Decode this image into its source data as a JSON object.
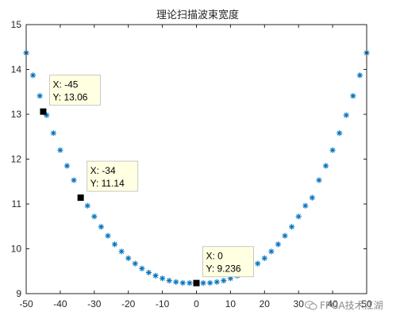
{
  "chart_data": {
    "type": "scatter",
    "title": "理论扫描波束宽度",
    "xlabel": "",
    "ylabel": "",
    "xlim": [
      -50,
      50
    ],
    "ylim": [
      9,
      15
    ],
    "xticks": [
      -50,
      -40,
      -30,
      -20,
      -10,
      0,
      10,
      20,
      30,
      40,
      50
    ],
    "yticks": [
      9,
      10,
      11,
      12,
      13,
      14,
      15
    ],
    "grid": false,
    "marker": "*",
    "series_color": "#0072BD",
    "series": [
      {
        "x": [
          -50,
          -48,
          -46,
          -44,
          -42,
          -40,
          -38,
          -36,
          -34,
          -32,
          -30,
          -28,
          -26,
          -24,
          -22,
          -20,
          -18,
          -16,
          -14,
          -12,
          -10,
          -8,
          -6,
          -4,
          -2,
          0,
          2,
          4,
          6,
          8,
          10,
          12,
          14,
          16,
          18,
          20,
          22,
          24,
          26,
          28,
          30,
          32,
          34,
          36,
          38,
          40,
          42,
          44,
          46,
          48,
          50
        ],
        "y": [
          14.37,
          13.87,
          13.41,
          12.98,
          12.58,
          12.2,
          11.85,
          11.53,
          11.14,
          10.96,
          10.72,
          10.49,
          10.29,
          10.1,
          9.94,
          9.79,
          9.67,
          9.56,
          9.47,
          9.4,
          9.34,
          9.29,
          9.26,
          9.24,
          9.237,
          9.236,
          9.237,
          9.24,
          9.26,
          9.29,
          9.34,
          9.4,
          9.47,
          9.56,
          9.67,
          9.79,
          9.94,
          10.1,
          10.29,
          10.49,
          10.72,
          10.96,
          11.14,
          11.53,
          11.85,
          12.2,
          12.58,
          12.98,
          13.41,
          13.87,
          14.37
        ]
      }
    ],
    "datatips": [
      {
        "x": -45,
        "y": 13.06,
        "label_x": "X: -45",
        "label_y": "Y: 13.06"
      },
      {
        "x": -34,
        "y": 11.14,
        "label_x": "X: -34",
        "label_y": "Y: 11.14"
      },
      {
        "x": 0,
        "y": 9.236,
        "label_x": "X: 0",
        "label_y": "Y: 9.236"
      }
    ]
  },
  "watermark": {
    "text": "FPGA技术江湖",
    "icon": "wechat-icon"
  }
}
